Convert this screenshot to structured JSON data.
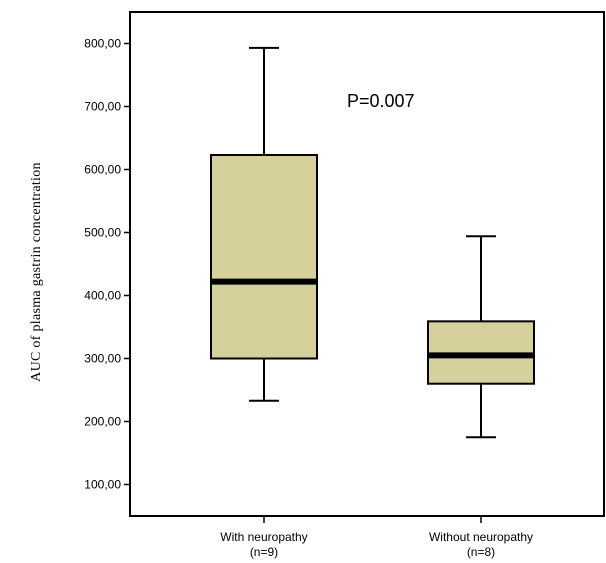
{
  "chart_data": {
    "type": "box",
    "ylabel": "AUC of plasma gastrin concentration",
    "xlabel": "",
    "ylim": [
      50,
      850
    ],
    "yticks": [
      100,
      200,
      300,
      400,
      500,
      600,
      700,
      800
    ],
    "ytick_labels": [
      "100,00",
      "200,00",
      "300,00",
      "400,00",
      "500,00",
      "600,00",
      "700,00",
      "800,00"
    ],
    "grid": false,
    "box_color": "#d6d09c",
    "annotation": "P=0.007",
    "categories": [
      {
        "label": "With neuropathy",
        "sublabel": "(n=9)",
        "min": 233,
        "q1": 300,
        "median": 422,
        "q3": 623,
        "max": 793
      },
      {
        "label": "Without neuropathy",
        "sublabel": "(n=8)",
        "min": 175,
        "q1": 260,
        "median": 305,
        "q3": 359,
        "max": 494
      }
    ]
  }
}
